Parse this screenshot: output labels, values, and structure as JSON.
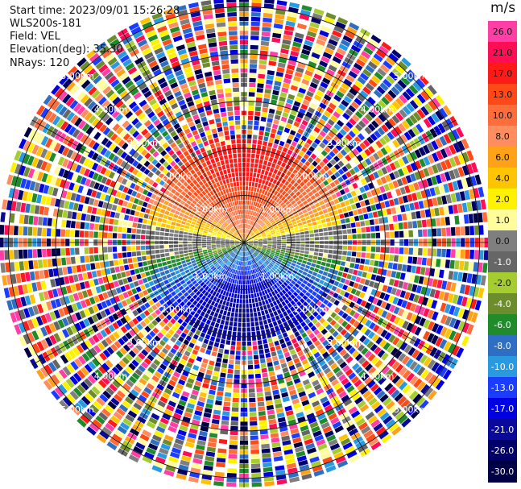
{
  "info": {
    "start_time": "Start time: 2023/09/01 15:26:28",
    "instrument": "WLS200s-181",
    "field": "Field: VEL",
    "elevation": "Elevation(deg): 35.30",
    "nrays": "NRays: 120"
  },
  "colorbar": {
    "unit": "m/s",
    "levels": [
      {
        "label": "26.0",
        "color": "#ff3fa6",
        "text": "#111111"
      },
      {
        "label": "21.0",
        "color": "#ff0d55",
        "text": "#111111"
      },
      {
        "label": "17.0",
        "color": "#ff1a1a",
        "text": "#111111"
      },
      {
        "label": "13.0",
        "color": "#ff4a17",
        "text": "#111111"
      },
      {
        "label": "10.0",
        "color": "#ff6e3a",
        "text": "#111111"
      },
      {
        "label": "8.0",
        "color": "#ff8d5f",
        "text": "#111111"
      },
      {
        "label": "6.0",
        "color": "#ffa21a",
        "text": "#111111"
      },
      {
        "label": "4.0",
        "color": "#ffc400",
        "text": "#111111"
      },
      {
        "label": "2.0",
        "color": "#fff200",
        "text": "#111111"
      },
      {
        "label": "1.0",
        "color": "#fffc9b",
        "text": "#111111"
      },
      {
        "label": "0.0",
        "color": "#7f7f7f",
        "text": "#111111"
      },
      {
        "label": "-1.0",
        "color": "#666666",
        "text": "#ffffff"
      },
      {
        "label": "-2.0",
        "color": "#a5cd2f",
        "text": "#111111"
      },
      {
        "label": "-4.0",
        "color": "#6d8c2b",
        "text": "#ffffff"
      },
      {
        "label": "-6.0",
        "color": "#208b2a",
        "text": "#ffffff"
      },
      {
        "label": "-8.0",
        "color": "#2e6fc3",
        "text": "#ffffff"
      },
      {
        "label": "-10.0",
        "color": "#2a9ae0",
        "text": "#ffffff"
      },
      {
        "label": "-13.0",
        "color": "#1a3dff",
        "text": "#ffffff"
      },
      {
        "label": "-17.0",
        "color": "#0000e0",
        "text": "#ffffff"
      },
      {
        "label": "-21.0",
        "color": "#0a0a9a",
        "text": "#ffffff"
      },
      {
        "label": "-26.0",
        "color": "#000068",
        "text": "#ffffff"
      },
      {
        "label": "-30.0",
        "color": "#000045",
        "text": "#ffffff"
      }
    ]
  },
  "range_rings": {
    "labels": [
      "1.00km",
      "2.00km",
      "3.00km",
      "4.00km",
      "5.00km"
    ]
  },
  "chart_data": {
    "type": "heatmap",
    "projection": "polar-ppi",
    "field": "VEL",
    "unit": "m/s",
    "elevation_deg": 35.3,
    "n_rays": 120,
    "range_rings_km": [
      1,
      2,
      3,
      4,
      5
    ],
    "colorbar_ticks": [
      26.0,
      21.0,
      17.0,
      13.0,
      10.0,
      8.0,
      6.0,
      4.0,
      2.0,
      1.0,
      0.0,
      -1.0,
      -2.0,
      -4.0,
      -6.0,
      -8.0,
      -10.0,
      -13.0,
      -17.0,
      -21.0,
      -26.0,
      -30.0
    ],
    "approx_valid_range_km": 2.2,
    "valid_pattern": "positive velocities (approx 10 to 21 m/s) to the north, negative velocities (approx -10 to -21 m/s) to the south, near-zero (grey/yellow) along the east-west axis",
    "outer_region": "noise (random colors) beyond approx 2.2 km"
  }
}
